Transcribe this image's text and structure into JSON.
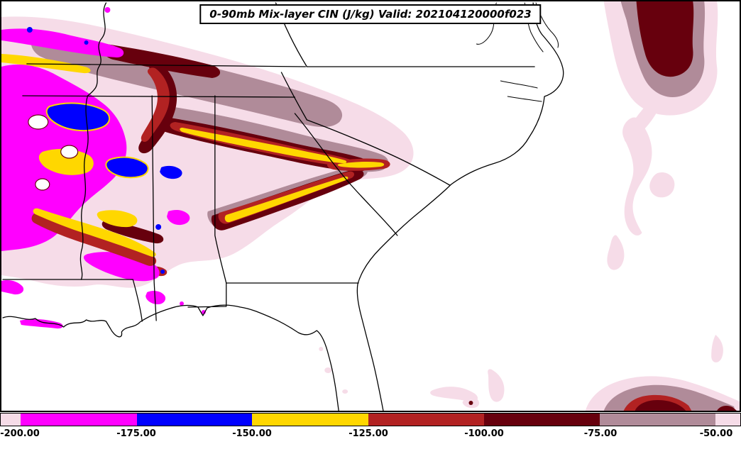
{
  "title": "0-90mb Mix-layer CIN (J/kg) Valid: 202104120000f023",
  "palette": {
    "magenta": "#FF00FF",
    "blue": "#0000FF",
    "yellow": "#FFD700",
    "firebrick": "#B22222",
    "maroon": "#67000D",
    "rosy": "#B08B99",
    "pale": "#F6DCE8",
    "boundary": "#000000",
    "background": "#FFFFFF"
  },
  "colorbar": {
    "tick_labels": [
      "-200.00",
      "-175.00",
      "-150.00",
      "-125.00",
      "-100.00",
      "-75.00",
      "-50.00"
    ],
    "segments": [
      {
        "name": "underflow",
        "color": "#F6DCE8",
        "flex": 28
      },
      {
        "name": "neg200-175",
        "color": "#FF00FF",
        "flex": 164
      },
      {
        "name": "neg175-150",
        "color": "#0000FF",
        "flex": 163
      },
      {
        "name": "neg150-125",
        "color": "#FFD700",
        "flex": 164
      },
      {
        "name": "neg125-100",
        "color": "#B22222",
        "flex": 163
      },
      {
        "name": "neg100-75",
        "color": "#67000D",
        "flex": 164
      },
      {
        "name": "neg75-50",
        "color": "#B08B99",
        "flex": 163
      },
      {
        "name": "overflow",
        "color": "#F6DCE8",
        "flex": 35
      }
    ]
  },
  "chart_data": {
    "type": "heatmap",
    "title": "0-90mb Mix-layer CIN (J/kg)",
    "valid_label": "Valid: 202104120000f023",
    "units": "J/kg",
    "colorbar_levels": [
      -200,
      -175,
      -150,
      -125,
      -100,
      -75,
      -50
    ],
    "colorbar_colors": [
      "#F6DCE8",
      "#FF00FF",
      "#0000FF",
      "#FFD700",
      "#B22222",
      "#67000D",
      "#B08B99",
      "#F6DCE8"
    ],
    "legend_position": "bottom",
    "notes": "Filled contour map of mixed-layer convective inhibition over the southeastern United States; strongest CIN (magenta/blue) over Arkansas-Louisiana-Mississippi, banded plume northeast through Tennessee/Georgia into the Carolinas, weak CIN (pale/rosy/maroon) blobs over the northwest and southwest Atlantic."
  }
}
